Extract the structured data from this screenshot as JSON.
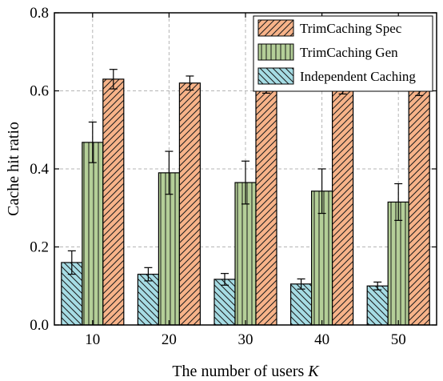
{
  "chart_data": {
    "type": "bar",
    "xlabel": "The number of users",
    "xlabel_symbol": "K",
    "ylabel": "Cache hit ratio",
    "ylim": [
      0,
      0.8
    ],
    "yticks": [
      "0.0",
      "0.2",
      "0.4",
      "0.6",
      "0.8"
    ],
    "categories": [
      "10",
      "20",
      "30",
      "40",
      "50"
    ],
    "grid": true,
    "legend_position": "top-right",
    "series": [
      {
        "name": "Independent Caching",
        "color": "#a6dce4",
        "hatch": "backslash",
        "values": [
          0.16,
          0.13,
          0.117,
          0.105,
          0.1
        ],
        "errors": [
          0.03,
          0.017,
          0.015,
          0.013,
          0.01
        ]
      },
      {
        "name": "TrimCaching Gen",
        "color": "#b4cf98",
        "hatch": "vertical",
        "values": [
          0.468,
          0.39,
          0.365,
          0.343,
          0.315
        ],
        "errors": [
          0.052,
          0.055,
          0.055,
          0.057,
          0.047
        ]
      },
      {
        "name": "TrimCaching Spec",
        "color": "#f7b389",
        "hatch": "slash",
        "values": [
          0.63,
          0.62,
          0.612,
          0.606,
          0.6
        ],
        "errors": [
          0.025,
          0.018,
          0.018,
          0.014,
          0.012
        ]
      }
    ],
    "legend_order": [
      "TrimCaching Spec",
      "TrimCaching Gen",
      "Independent Caching"
    ]
  }
}
